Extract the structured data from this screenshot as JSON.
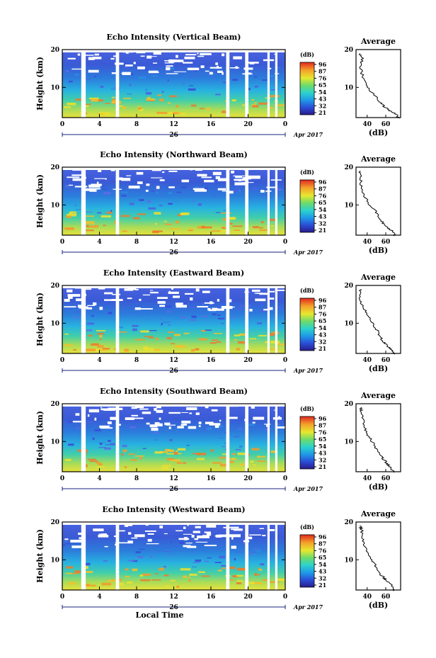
{
  "chart_data": [
    {
      "type": "heatmap",
      "title": "Echo Intensity (Vertical Beam)",
      "ylabel": "Height (km)",
      "yticks": [
        "20",
        "10"
      ],
      "xticks": [
        "0",
        "4",
        "8",
        "12",
        "16",
        "20",
        "0"
      ],
      "date_label": "26",
      "month_label": "Apr 2017",
      "colorbar_unit": "(dB)",
      "colorbar_ticks": [
        "96",
        "87",
        "76",
        "65",
        "54",
        "43",
        "32",
        "21"
      ],
      "avg_title": "Average",
      "avg_xticks": [
        "40",
        "60"
      ],
      "avg_xlabel": "(dB)",
      "avg_yticks": [
        "20",
        "10"
      ],
      "ylim": [
        2,
        20
      ],
      "avg_profile": [
        [
          1.8,
          74
        ],
        [
          3,
          71
        ],
        [
          4,
          63
        ],
        [
          5,
          58
        ],
        [
          6,
          54
        ],
        [
          8,
          48
        ],
        [
          10,
          40
        ],
        [
          12,
          36
        ],
        [
          14,
          34
        ],
        [
          16,
          33
        ],
        [
          18,
          35
        ],
        [
          19,
          32
        ]
      ]
    },
    {
      "type": "heatmap",
      "title": "Echo Intensity (Northward Beam)",
      "ylabel": "Height (km)",
      "yticks": [
        "20",
        "10"
      ],
      "xticks": [
        "0",
        "4",
        "8",
        "12",
        "16",
        "20",
        "0"
      ],
      "date_label": "26",
      "month_label": "Apr 2017",
      "colorbar_unit": "(dB)",
      "colorbar_ticks": [
        "96",
        "87",
        "76",
        "65",
        "54",
        "43",
        "32",
        "21"
      ],
      "avg_title": "Average",
      "avg_xticks": [
        "40",
        "60"
      ],
      "avg_xlabel": "(dB)",
      "avg_yticks": [
        "20",
        "10"
      ],
      "ylim": [
        2,
        20
      ],
      "avg_profile": [
        [
          1.8,
          70
        ],
        [
          3,
          68
        ],
        [
          4,
          62
        ],
        [
          5,
          58
        ],
        [
          6,
          54
        ],
        [
          8,
          50
        ],
        [
          10,
          43
        ],
        [
          12,
          38
        ],
        [
          14,
          35
        ],
        [
          16,
          33
        ],
        [
          18,
          33
        ],
        [
          19,
          32
        ]
      ]
    },
    {
      "type": "heatmap",
      "title": "Echo Intensity (Eastward Beam)",
      "ylabel": "Height (km)",
      "yticks": [
        "20",
        "10"
      ],
      "xticks": [
        "0",
        "4",
        "8",
        "12",
        "16",
        "20",
        "0"
      ],
      "date_label": "26",
      "month_label": "Apr 2017",
      "colorbar_unit": "(dB)",
      "colorbar_ticks": [
        "96",
        "87",
        "76",
        "65",
        "54",
        "43",
        "32",
        "21"
      ],
      "avg_title": "Average",
      "avg_xticks": [
        "40",
        "60"
      ],
      "avg_xlabel": "(dB)",
      "avg_yticks": [
        "20",
        "10"
      ],
      "ylim": [
        2,
        20
      ],
      "avg_profile": [
        [
          1.8,
          69
        ],
        [
          3,
          66
        ],
        [
          4,
          62
        ],
        [
          5,
          58
        ],
        [
          6,
          55
        ],
        [
          8,
          51
        ],
        [
          10,
          46
        ],
        [
          12,
          41
        ],
        [
          14,
          36
        ],
        [
          16,
          33
        ],
        [
          18,
          32
        ],
        [
          19,
          33
        ]
      ]
    },
    {
      "type": "heatmap",
      "title": "Echo Intensity (Southward Beam)",
      "ylabel": "Height (km)",
      "yticks": [
        "20",
        "10"
      ],
      "xticks": [
        "0",
        "4",
        "8",
        "12",
        "16",
        "20",
        "0"
      ],
      "date_label": "26",
      "month_label": "Apr 2017",
      "colorbar_unit": "(dB)",
      "colorbar_ticks": [
        "96",
        "87",
        "76",
        "65",
        "54",
        "43",
        "32",
        "21"
      ],
      "avg_title": "Average",
      "avg_xticks": [
        "40",
        "60"
      ],
      "avg_xlabel": "(dB)",
      "avg_yticks": [
        "20",
        "10"
      ],
      "ylim": [
        2,
        20
      ],
      "avg_profile": [
        [
          1.8,
          68
        ],
        [
          3,
          66
        ],
        [
          4,
          62
        ],
        [
          5,
          59
        ],
        [
          6,
          55
        ],
        [
          8,
          50
        ],
        [
          10,
          45
        ],
        [
          12,
          40
        ],
        [
          14,
          37
        ],
        [
          16,
          35
        ],
        [
          18,
          34
        ],
        [
          19,
          33
        ]
      ]
    },
    {
      "type": "heatmap",
      "title": "Echo Intensity (Westward Beam)",
      "ylabel": "Height (km)",
      "yticks": [
        "20",
        "10"
      ],
      "xticks": [
        "0",
        "4",
        "8",
        "12",
        "16",
        "20",
        "0"
      ],
      "date_label": "26",
      "month_label": "Apr 2017",
      "xlabel": "Local Time",
      "colorbar_unit": "(dB)",
      "colorbar_ticks": [
        "96",
        "87",
        "76",
        "65",
        "54",
        "43",
        "32",
        "21"
      ],
      "avg_title": "Average",
      "avg_xticks": [
        "40",
        "60"
      ],
      "avg_xlabel": "(dB)",
      "avg_yticks": [
        "20",
        "10"
      ],
      "ylim": [
        2,
        20
      ],
      "avg_profile": [
        [
          1.8,
          69
        ],
        [
          3,
          67
        ],
        [
          4,
          63
        ],
        [
          5,
          59
        ],
        [
          6,
          55
        ],
        [
          8,
          50
        ],
        [
          10,
          45
        ],
        [
          12,
          40
        ],
        [
          14,
          37
        ],
        [
          16,
          35
        ],
        [
          18,
          34
        ],
        [
          19,
          32
        ]
      ]
    }
  ]
}
